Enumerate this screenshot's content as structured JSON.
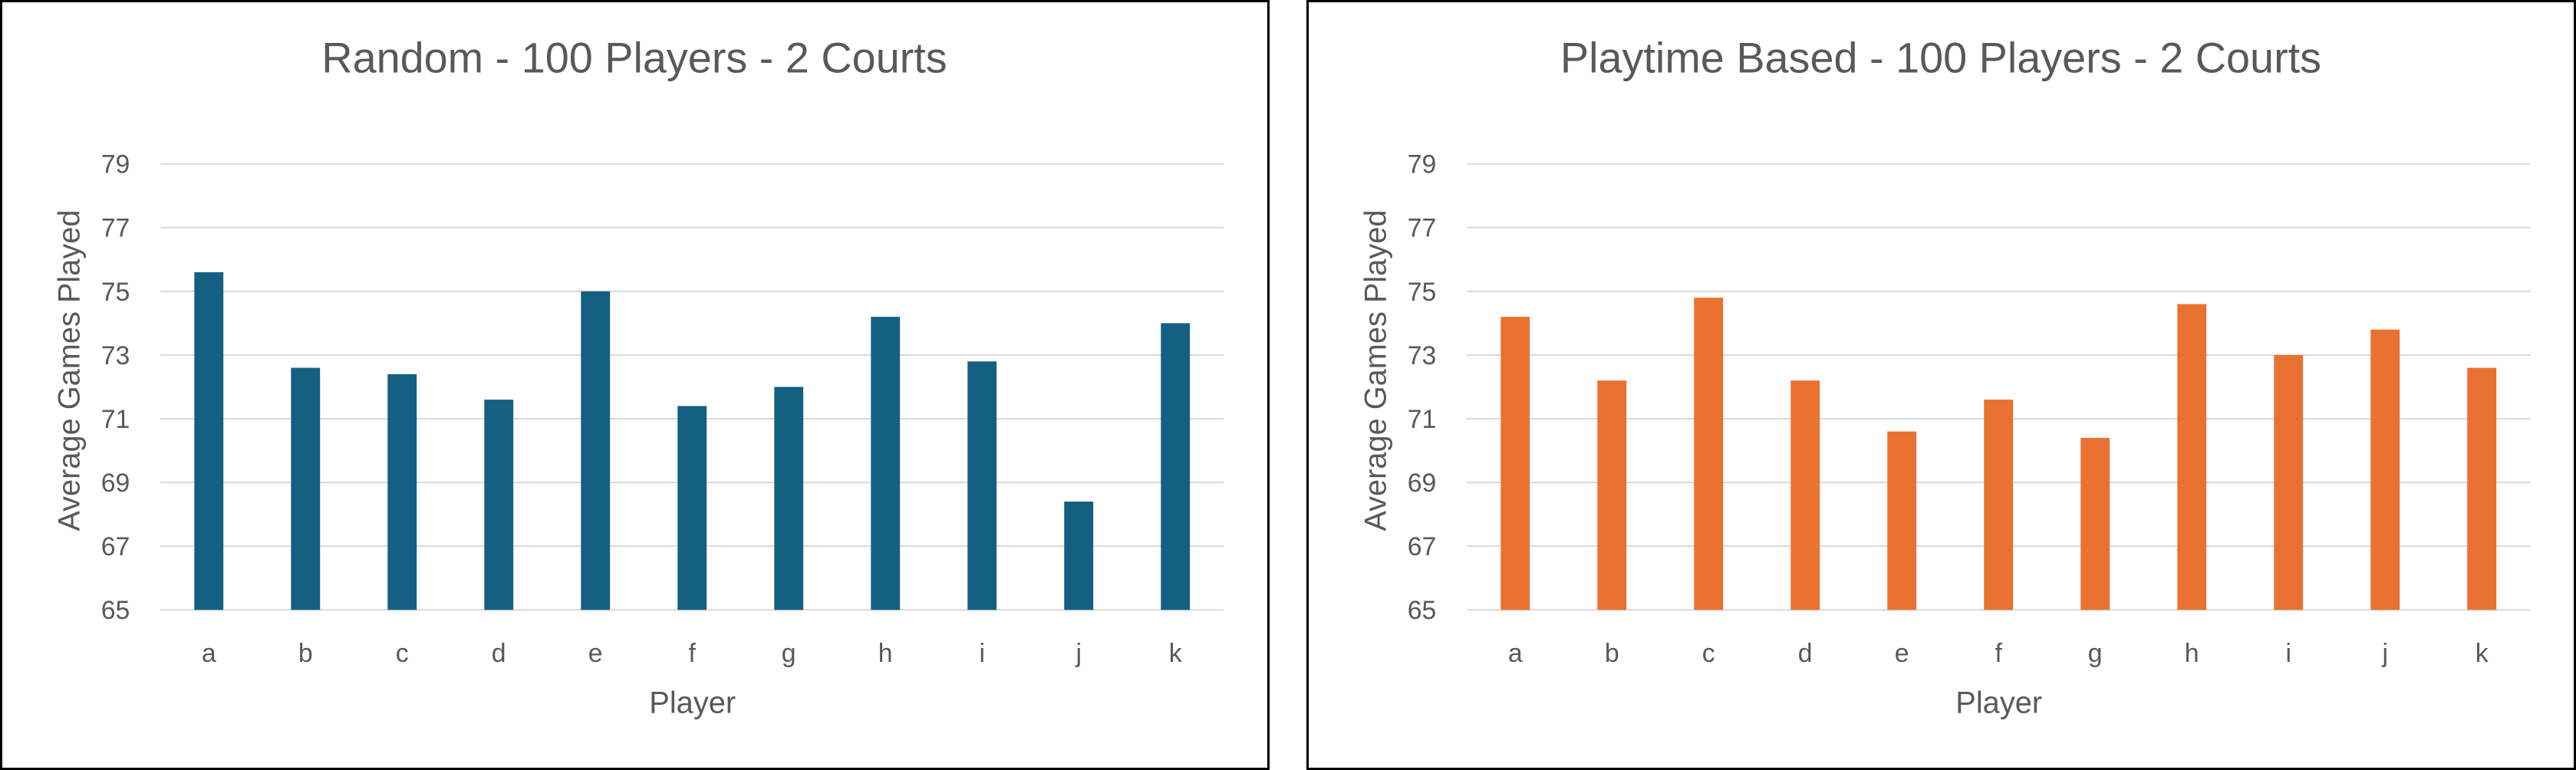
{
  "chart_data": [
    {
      "type": "bar",
      "title": "Random - 100 Players - 2 Courts",
      "xlabel": "Player",
      "ylabel": "Average Games Played",
      "categories": [
        "a",
        "b",
        "c",
        "d",
        "e",
        "f",
        "g",
        "h",
        "i",
        "j",
        "k"
      ],
      "values": [
        75.6,
        72.6,
        72.4,
        71.6,
        75.0,
        71.4,
        72.0,
        74.2,
        72.8,
        68.4,
        74.0
      ],
      "ylim": [
        65,
        79
      ],
      "yticks": [
        65,
        67,
        69,
        71,
        73,
        75,
        77,
        79
      ],
      "grid": true,
      "legend": "none",
      "color": "#156082"
    },
    {
      "type": "bar",
      "title": "Playtime Based - 100 Players - 2 Courts",
      "xlabel": "Player",
      "ylabel": "Average Games Played",
      "categories": [
        "a",
        "b",
        "c",
        "d",
        "e",
        "f",
        "g",
        "h",
        "i",
        "j",
        "k"
      ],
      "values": [
        74.2,
        72.2,
        74.8,
        72.2,
        70.6,
        71.6,
        70.4,
        74.6,
        73.0,
        73.8,
        72.6
      ],
      "ylim": [
        65,
        79
      ],
      "yticks": [
        65,
        67,
        69,
        71,
        73,
        75,
        77,
        79
      ],
      "grid": true,
      "legend": "none",
      "color": "#E97132"
    }
  ]
}
